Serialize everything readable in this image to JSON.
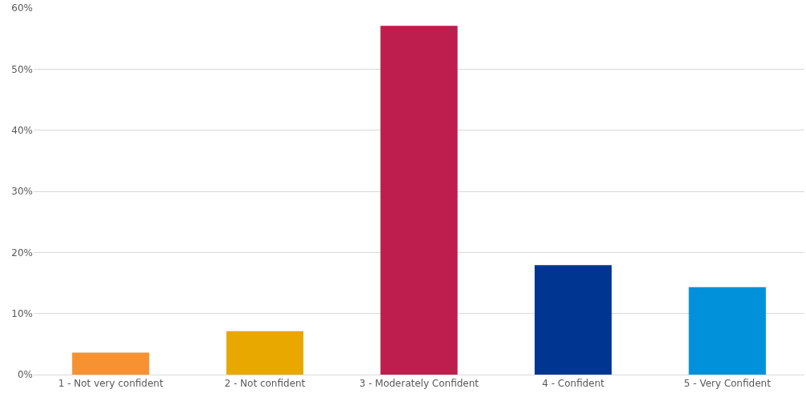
{
  "chart_data": {
    "type": "bar",
    "categories": [
      "1 - Not very confident",
      "2 - Not confident",
      "3 - Moderately Confident",
      "4 - Confident",
      "5 - Very Confident"
    ],
    "values": [
      3.6,
      7.1,
      57.1,
      17.9,
      14.3
    ],
    "colors": [
      "#f79232",
      "#e8a800",
      "#be1e4d",
      "#003591",
      "#0091da"
    ],
    "ylim": [
      0,
      60
    ],
    "yticks": [
      {
        "value": 0,
        "label": "0%"
      },
      {
        "value": 10,
        "label": "10%"
      },
      {
        "value": 20,
        "label": "20%"
      },
      {
        "value": 30,
        "label": "30%"
      },
      {
        "value": 40,
        "label": "40%"
      },
      {
        "value": 50,
        "label": "50%"
      },
      {
        "value": 60,
        "label": "60%"
      }
    ],
    "grid": "y",
    "legend": false
  }
}
